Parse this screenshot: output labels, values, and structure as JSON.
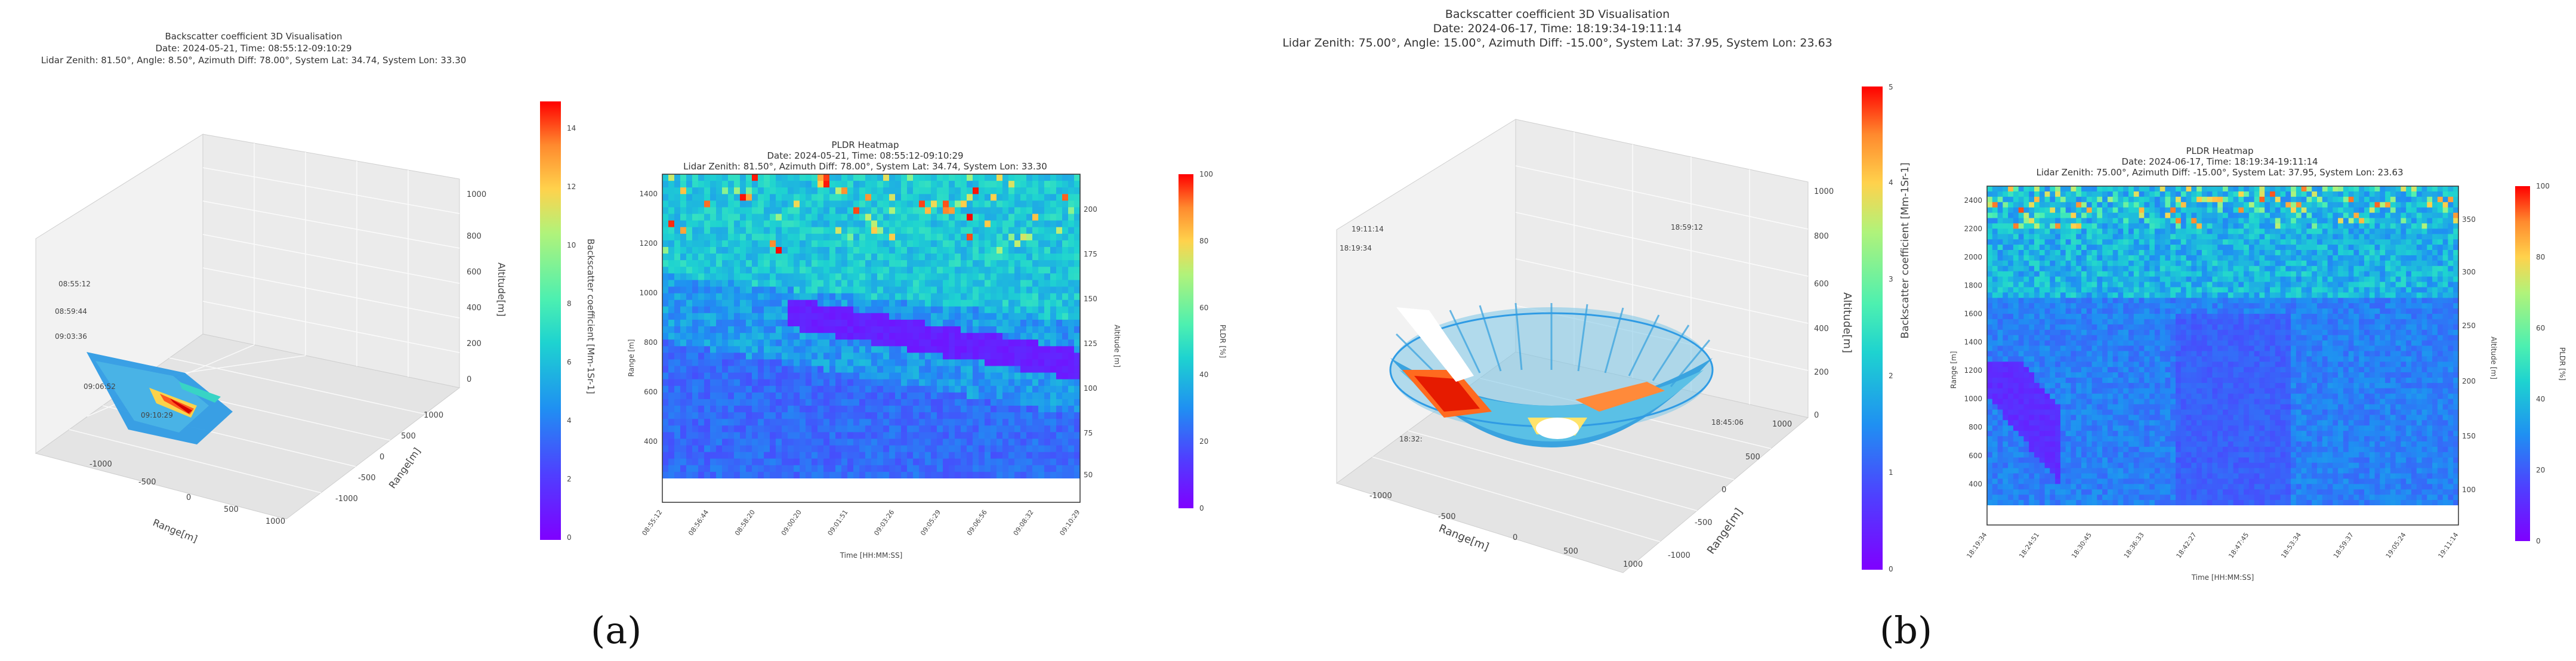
{
  "panel_labels": [
    "(a)",
    "(b)"
  ],
  "chart_data": [
    {
      "id": "a_3d",
      "type": "scatter",
      "title": "Backscatter coefficient 3D Visualisation",
      "subtitle1": "Date: 2024-05-21, Time: 08:55:12-09:10:29",
      "subtitle2": "Lidar Zenith: 81.50°, Angle: 8.50°, Azimuth Diff: 78.00°, System Lat: 34.74, System Lon: 33.30",
      "xlabel": "Range[m]",
      "ylabel": "Range[m]",
      "zlabel": "Altitude[m]",
      "x_ticks": [
        "-1000",
        "-500",
        "0",
        "500",
        "1000"
      ],
      "y_ticks": [
        "-1000",
        "-500",
        "0",
        "500",
        "1000"
      ],
      "z_ticks": [
        "0",
        "200",
        "400",
        "600",
        "800",
        "1000"
      ],
      "time_labels": [
        "08:55:12",
        "08:59:44",
        "09:03:36",
        "09:06:52",
        "09:10:29"
      ],
      "colorbar": {
        "label": "Backscatter coefficient [Mm-1Sr-1]",
        "ticks": [
          "0",
          "2",
          "4",
          "6",
          "8",
          "10",
          "12",
          "14"
        ],
        "range": [
          0,
          15
        ],
        "colormap": "rainbow"
      }
    },
    {
      "id": "a_heatmap",
      "type": "heatmap",
      "title": "PLDR Heatmap",
      "subtitle1": "Date: 2024-05-21, Time: 08:55:12-09:10:29",
      "subtitle2": "Lidar Zenith: 81.50°, Azimuth Diff: 78.00°, System Lat: 34.74, System Lon: 33.30",
      "xlabel": "Time [HH:MM:SS]",
      "ylabel": "Range [m]",
      "y2label": "Altitude [m]",
      "x_ticks": [
        "08:55:12",
        "08:56:44",
        "08:58:20",
        "09:00:20",
        "09:01:51",
        "09:03:26",
        "09:05:29",
        "09:06:56",
        "09:08:32",
        "09:10:29"
      ],
      "y_ticks": [
        400,
        600,
        800,
        1000,
        1200,
        1400
      ],
      "y_range": [
        250,
        1480
      ],
      "y2_ticks": [
        "50",
        "75",
        "100",
        "125",
        "150",
        "175",
        "200"
      ],
      "colorbar": {
        "label": "PLDR [%]",
        "ticks": [
          "0",
          "20",
          "40",
          "60",
          "80",
          "100"
        ],
        "range": [
          0,
          100
        ],
        "colormap": "rainbow"
      }
    },
    {
      "id": "b_3d",
      "type": "scatter",
      "title": "Backscatter coefficient 3D Visualisation",
      "subtitle1": "Date: 2024-06-17, Time: 18:19:34-19:11:14",
      "subtitle2": "Lidar Zenith: 75.00°, Angle: 15.00°, Azimuth Diff: -15.00°, System Lat: 37.95, System Lon: 23.63",
      "xlabel": "Range[m]",
      "ylabel": "Range[m]",
      "zlabel": "Altitude[m]",
      "x_ticks": [
        "-1000",
        "-500",
        "0",
        "500",
        "1000"
      ],
      "y_ticks": [
        "-1000",
        "-500",
        "0",
        "500",
        "1000"
      ],
      "z_ticks": [
        "0",
        "200",
        "400",
        "600",
        "800",
        "1000"
      ],
      "time_labels": [
        "19:11:14",
        "18:19:34",
        "18:59:12",
        "18:45:06",
        "18:32:"
      ],
      "colorbar": {
        "label": "Backscatter coefficient [Mm-1Sr-1]",
        "ticks": [
          "0",
          "1",
          "2",
          "3",
          "4",
          "5"
        ],
        "range": [
          0,
          5
        ],
        "colormap": "rainbow"
      }
    },
    {
      "id": "b_heatmap",
      "type": "heatmap",
      "title": "PLDR Heatmap",
      "subtitle1": "Date: 2024-06-17, Time: 18:19:34-19:11:14",
      "subtitle2": "Lidar Zenith: 75.00°, Azimuth Diff: -15.00°, System Lat: 37.95, System Lon: 23.63",
      "xlabel": "Time [HH:MM:SS]",
      "ylabel": "Range [m]",
      "y2label": "Altitude [m]",
      "x_ticks": [
        "18:19:34",
        "18:24:51",
        "18:30:45",
        "18:36:33",
        "18:42:27",
        "18:47:45",
        "18:53:34",
        "18:59:37",
        "19:05:24",
        "19:11:14"
      ],
      "y_ticks": [
        400,
        600,
        800,
        1000,
        1200,
        1400,
        1600,
        1800,
        2000,
        2200,
        2400
      ],
      "y_range": [
        250,
        2500
      ],
      "y2_ticks": [
        "100",
        "150",
        "200",
        "250",
        "300",
        "350"
      ],
      "colorbar": {
        "label": "PLDR [%]",
        "ticks": [
          "0",
          "20",
          "40",
          "60",
          "80",
          "100"
        ],
        "range": [
          0,
          100
        ],
        "colormap": "rainbow"
      }
    }
  ]
}
